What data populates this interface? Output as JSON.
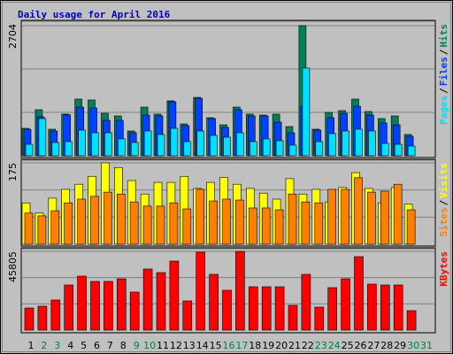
{
  "chart_data": [
    {
      "type": "bar",
      "title": "Daily usage for April 2016",
      "title_color": "#0000c0",
      "ylim": [
        0,
        2704
      ],
      "yticks": [
        2704
      ],
      "grid_divisions": 3,
      "legend_separator": "/",
      "series": [
        {
          "name": "Hits",
          "color": "#00805c",
          "values": [
            570,
            957,
            552,
            865,
            1178,
            1159,
            883,
            828,
            515,
            1012,
            865,
            1141,
            662,
            1214,
            791,
            644,
            1012,
            865,
            846,
            865,
            607,
            2704,
            552,
            902,
            938,
            1178,
            920,
            773,
            828,
            442,
            null
          ]
        },
        {
          "name": "Files",
          "color": "#0040ff",
          "values": [
            550,
            810,
            515,
            850,
            1012,
            994,
            736,
            736,
            478,
            846,
            828,
            1122,
            626,
            1196,
            773,
            589,
            957,
            828,
            828,
            699,
            478,
            1030,
            534,
            791,
            883,
            1030,
            846,
            681,
            644,
            405,
            null
          ]
        },
        {
          "name": "Pages",
          "color": "#00e0ff",
          "values": [
            239,
            773,
            276,
            294,
            534,
            478,
            478,
            350,
            276,
            515,
            442,
            570,
            294,
            515,
            423,
            386,
            478,
            294,
            350,
            313,
            221,
            1822,
            294,
            460,
            515,
            552,
            515,
            258,
            239,
            202,
            null
          ]
        }
      ]
    },
    {
      "type": "bar",
      "ylim": [
        0,
        175
      ],
      "yticks": [
        175
      ],
      "grid_divisions": 3,
      "legend_separator": "/",
      "series": [
        {
          "name": "Visits",
          "color": "#ffff00",
          "values": [
            89,
            67,
            99,
            118,
            129,
            146,
            175,
            165,
            137,
            108,
            133,
            133,
            146,
            120,
            133,
            144,
            129,
            120,
            110,
            97,
            141,
            108,
            118,
            91,
            122,
            154,
            120,
            89,
            122,
            86,
            null
          ]
        },
        {
          "name": "Sites",
          "color": "#ff8000",
          "values": [
            67,
            61,
            72,
            89,
            97,
            103,
            112,
            108,
            91,
            82,
            82,
            89,
            76,
            118,
            93,
            97,
            95,
            78,
            78,
            74,
            108,
            91,
            89,
            118,
            118,
            143,
            112,
            114,
            129,
            74,
            null
          ]
        }
      ]
    },
    {
      "type": "bar",
      "ylim": [
        0,
        45805
      ],
      "yticks": [
        45805
      ],
      "grid_divisions": 3,
      "categories": [
        "1",
        "2",
        "3",
        "4",
        "5",
        "6",
        "7",
        "8",
        "9",
        "10",
        "11",
        "12",
        "13",
        "14",
        "15",
        "16",
        "17",
        "18",
        "19",
        "20",
        "21",
        "22",
        "23",
        "24",
        "25",
        "26",
        "27",
        "28",
        "29",
        "30",
        "31"
      ],
      "category_colors": [
        "#000000",
        "#008040",
        "#008040",
        "#000000",
        "#000000",
        "#000000",
        "#000000",
        "#000000",
        "#008040",
        "#008040",
        "#000000",
        "#000000",
        "#000000",
        "#000000",
        "#000000",
        "#008040",
        "#008040",
        "#000000",
        "#000000",
        "#000000",
        "#000000",
        "#000000",
        "#008040",
        "#008040",
        "#000000",
        "#000000",
        "#000000",
        "#000000",
        "#000000",
        "#008040",
        "#008040"
      ],
      "series": [
        {
          "name": "KBytes",
          "color": "#ff0000",
          "values": [
            12867,
            13897,
            17500,
            26250,
            31397,
            28309,
            28309,
            29853,
            22132,
            35514,
            33456,
            40147,
            16985,
            45294,
            32426,
            23162,
            45805,
            25221,
            25221,
            25221,
            14412,
            32426,
            13382,
            24706,
            29853,
            42720,
            26765,
            26250,
            26250,
            11324,
            null
          ]
        }
      ]
    }
  ]
}
